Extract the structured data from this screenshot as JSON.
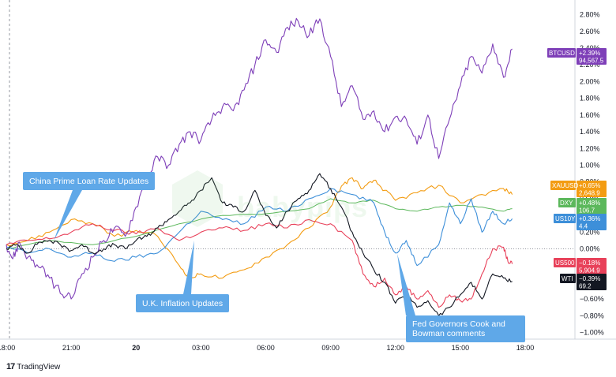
{
  "chart_data": {
    "type": "line",
    "x_ticks": [
      "18:00",
      "21:00",
      "20",
      "03:00",
      "06:00",
      "09:00",
      "12:00",
      "15:00",
      "18:00"
    ],
    "y_ticks": [
      "2.80%",
      "2.60%",
      "2.40%",
      "2.20%",
      "2.00%",
      "1.80%",
      "1.60%",
      "1.40%",
      "1.20%",
      "1.00%",
      "0.80%",
      "0.60%",
      "0.40%",
      "0.20%",
      "0.00%",
      "−0.20%",
      "−0.40%",
      "−0.60%",
      "−0.80%",
      "−1.00%"
    ],
    "ylim": [
      -1.08,
      2.9
    ],
    "series": [
      {
        "name": "BTCUSD",
        "color": "#7e3fb8",
        "change": "+2.39%",
        "last": "94,567.5",
        "x": [
          0,
          0.3,
          0.6,
          1,
          1.5,
          2,
          2.6,
          3,
          3.5,
          4,
          4.5,
          5,
          5.5,
          6,
          6.5,
          7,
          7.5,
          8,
          8.5,
          9,
          9.5,
          10,
          10.5,
          11,
          11.5,
          12,
          12.5,
          13,
          13.5,
          14,
          14.5,
          15,
          15.5,
          16,
          16.5,
          17,
          17.5,
          18,
          18.5,
          19,
          19.5,
          20,
          20.5,
          21,
          21.5,
          22,
          22.5,
          23,
          23.4
        ],
        "values": [
          0.05,
          -0.12,
          0.08,
          -0.1,
          -0.22,
          -0.35,
          -0.55,
          -0.6,
          -0.3,
          -0.1,
          0.1,
          0.25,
          0.15,
          0.5,
          0.85,
          1.1,
          1.0,
          1.25,
          1.4,
          1.3,
          1.55,
          1.7,
          1.65,
          1.9,
          2.2,
          2.5,
          2.35,
          2.65,
          2.72,
          2.55,
          2.75,
          2.3,
          1.7,
          1.95,
          1.55,
          1.65,
          1.4,
          1.58,
          1.55,
          1.25,
          1.6,
          1.08,
          1.55,
          1.95,
          2.3,
          2.1,
          2.45,
          2.05,
          2.39
        ]
      },
      {
        "name": "XAUUSD",
        "color": "#f39c12",
        "change": "+0.65%",
        "last": "2,648.9",
        "x": [
          0,
          1,
          2,
          3,
          4,
          5,
          6,
          7,
          8,
          8.5,
          9,
          10,
          11,
          12,
          13,
          14,
          15,
          15.5,
          16,
          16.5,
          17,
          17.5,
          18,
          19,
          20,
          21,
          22,
          23,
          23.4
        ],
        "values": [
          0.05,
          0.1,
          0.2,
          0.35,
          0.3,
          0.15,
          0.22,
          0.15,
          -0.2,
          -0.35,
          -0.3,
          -0.35,
          -0.25,
          -0.1,
          0.05,
          0.25,
          0.5,
          0.75,
          0.85,
          0.72,
          0.82,
          0.7,
          0.58,
          0.67,
          0.76,
          0.55,
          0.65,
          0.72,
          0.65
        ]
      },
      {
        "name": "DXY",
        "color": "#5cb85c",
        "change": "+0.48%",
        "last": "106.7",
        "x": [
          0,
          2,
          4,
          6,
          8,
          10,
          12,
          14,
          15,
          16,
          17,
          18,
          19,
          20,
          21,
          22,
          23,
          23.4
        ],
        "values": [
          0.0,
          0.1,
          0.05,
          0.15,
          0.3,
          0.4,
          0.42,
          0.48,
          0.6,
          0.55,
          0.58,
          0.48,
          0.45,
          0.5,
          0.52,
          0.5,
          0.45,
          0.48
        ]
      },
      {
        "name": "US10Y",
        "color": "#3d8fd9",
        "change": "+0.36%",
        "last": "4.4",
        "x": [
          0,
          1,
          2,
          3,
          4,
          5,
          6,
          7,
          8,
          9,
          10,
          11,
          12,
          13,
          14,
          15,
          16,
          17,
          17.5,
          18,
          18.5,
          19,
          20,
          20.5,
          21,
          21.5,
          22,
          22.5,
          23,
          23.4
        ],
        "values": [
          0.02,
          -0.05,
          0.0,
          -0.1,
          -0.05,
          -0.15,
          -0.1,
          -0.05,
          0.2,
          0.45,
          0.35,
          0.3,
          0.5,
          0.45,
          0.6,
          0.72,
          0.65,
          0.55,
          0.2,
          -0.05,
          0.1,
          -0.2,
          0.05,
          0.55,
          0.3,
          0.6,
          0.2,
          0.45,
          0.3,
          0.36
        ]
      },
      {
        "name": "US500",
        "color": "#e8415a",
        "change": "−0.18%",
        "last": "5,904.9",
        "x": [
          0,
          1,
          2,
          3,
          4,
          5,
          6,
          7,
          8,
          9,
          10,
          11,
          12,
          13,
          14,
          15,
          16,
          16.5,
          17,
          17.5,
          18,
          18.5,
          19,
          19.5,
          20,
          20.5,
          21,
          21.5,
          22,
          22.5,
          23,
          23.2,
          23.4
        ],
        "values": [
          0.05,
          0.1,
          0.12,
          0.2,
          0.3,
          0.22,
          0.18,
          0.25,
          0.1,
          0.2,
          0.25,
          0.22,
          0.3,
          0.25,
          0.35,
          0.3,
          0.1,
          -0.3,
          -0.45,
          -0.35,
          -0.55,
          -0.45,
          -0.6,
          -0.5,
          -0.7,
          -0.55,
          -0.62,
          -0.6,
          -0.3,
          0.0,
          0.02,
          -0.15,
          -0.18
        ]
      },
      {
        "name": "WTI",
        "color": "#131722",
        "change": "−0.39%",
        "last": "69.2",
        "x": [
          0,
          0.5,
          1,
          1.5,
          2,
          2.5,
          3,
          3.5,
          4,
          4.5,
          5,
          5.5,
          6,
          6.5,
          7,
          7.5,
          8,
          8.5,
          9,
          9.5,
          10,
          10.5,
          11,
          11.5,
          12,
          12.5,
          13,
          13.5,
          14,
          14.5,
          15,
          15.5,
          16,
          16.5,
          17,
          17.5,
          18,
          18.5,
          19,
          19.5,
          20,
          20.5,
          21,
          21.5,
          22,
          22.5,
          23,
          23.4
        ],
        "values": [
          0.0,
          0.05,
          -0.05,
          0.08,
          0.1,
          0.05,
          -0.02,
          0.05,
          -0.05,
          0.0,
          0.05,
          0.0,
          0.1,
          0.15,
          0.25,
          0.35,
          0.45,
          0.55,
          0.7,
          0.85,
          0.55,
          0.5,
          0.45,
          0.7,
          0.4,
          0.25,
          0.45,
          0.6,
          0.7,
          0.9,
          0.72,
          0.5,
          0.2,
          -0.05,
          -0.25,
          -0.4,
          -0.65,
          -0.55,
          -0.7,
          -0.62,
          -0.8,
          -0.7,
          -0.55,
          -0.4,
          -0.6,
          -0.3,
          -0.35,
          -0.39
        ]
      }
    ],
    "annotations": [
      {
        "text": "China Prime Loan Rate Updates"
      },
      {
        "text": "U.K. Inflation Updates"
      },
      {
        "text": "Fed Governors Cook and Bowman comments"
      }
    ],
    "grid": false,
    "legend": "right-axis"
  },
  "watermark": "babypips",
  "brand": {
    "logo": "17",
    "name": "TradingView"
  }
}
